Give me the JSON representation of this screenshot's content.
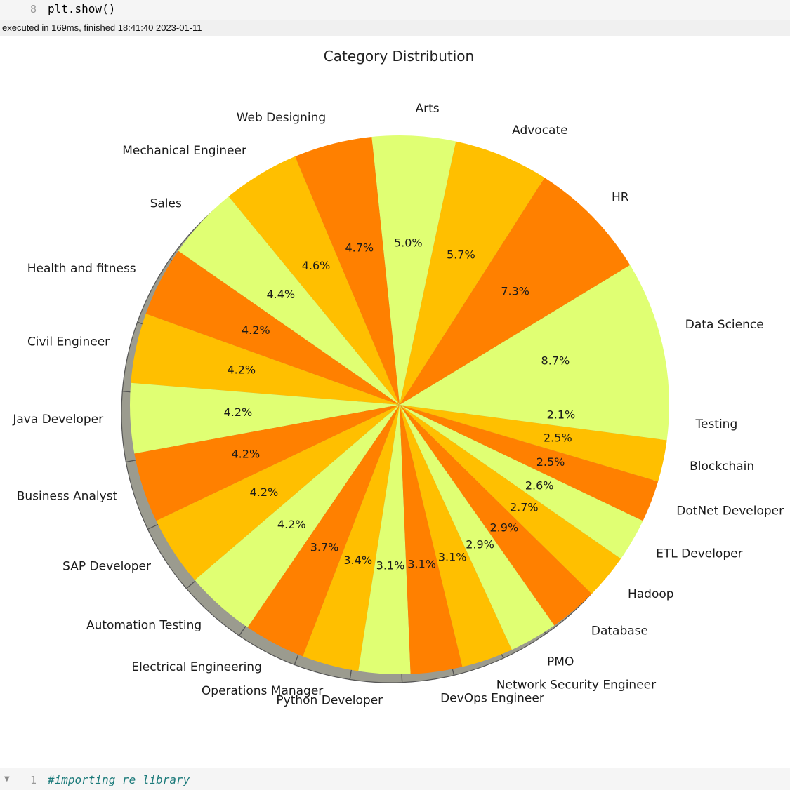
{
  "notebook": {
    "top_cell": {
      "line_number": "8",
      "code": "plt.show()"
    },
    "exec_status": "executed in 169ms, finished 18:41:40 2023-01-11",
    "bottom_cell": {
      "line_number": "1",
      "code": "#importing re library"
    }
  },
  "chart_data": {
    "type": "pie",
    "title": "Category Distribution",
    "colors": [
      "#e0ff73",
      "#ff8000",
      "#ffbf00"
    ],
    "shadow": true,
    "start_angle_deg": 0,
    "direction": "counterclockwise",
    "slices": [
      {
        "label": "Data Science",
        "pct": "8.7%",
        "value": 8.7
      },
      {
        "label": "HR",
        "pct": "7.3%",
        "value": 7.3
      },
      {
        "label": "Advocate",
        "pct": "5.7%",
        "value": 5.7
      },
      {
        "label": "Arts",
        "pct": "5.0%",
        "value": 5.0
      },
      {
        "label": "Web Designing",
        "pct": "4.7%",
        "value": 4.7
      },
      {
        "label": "Mechanical Engineer",
        "pct": "4.6%",
        "value": 4.6
      },
      {
        "label": "Sales",
        "pct": "4.4%",
        "value": 4.4
      },
      {
        "label": "Health and fitness",
        "pct": "4.2%",
        "value": 4.2
      },
      {
        "label": "Civil Engineer",
        "pct": "4.2%",
        "value": 4.2
      },
      {
        "label": "Java Developer",
        "pct": "4.2%",
        "value": 4.2
      },
      {
        "label": "Business Analyst",
        "pct": "4.2%",
        "value": 4.2
      },
      {
        "label": "SAP Developer",
        "pct": "4.2%",
        "value": 4.2
      },
      {
        "label": "Automation Testing",
        "pct": "4.2%",
        "value": 4.2
      },
      {
        "label": "Electrical Engineering",
        "pct": "3.7%",
        "value": 3.7
      },
      {
        "label": "Operations Manager",
        "pct": "3.4%",
        "value": 3.4
      },
      {
        "label": "Python Developer",
        "pct": "3.1%",
        "value": 3.1
      },
      {
        "label": "DevOps Engineer",
        "pct": "3.1%",
        "value": 3.1
      },
      {
        "label": "Network Security Engineer",
        "pct": "3.1%",
        "value": 3.1
      },
      {
        "label": "PMO",
        "pct": "2.9%",
        "value": 2.9
      },
      {
        "label": "Database",
        "pct": "2.9%",
        "value": 2.9
      },
      {
        "label": "Hadoop",
        "pct": "2.7%",
        "value": 2.7
      },
      {
        "label": "ETL Developer",
        "pct": "2.6%",
        "value": 2.6
      },
      {
        "label": "DotNet Developer",
        "pct": "2.5%",
        "value": 2.5
      },
      {
        "label": "Blockchain",
        "pct": "2.5%",
        "value": 2.5
      },
      {
        "label": "Testing",
        "pct": "2.1%",
        "value": 2.1
      }
    ]
  }
}
